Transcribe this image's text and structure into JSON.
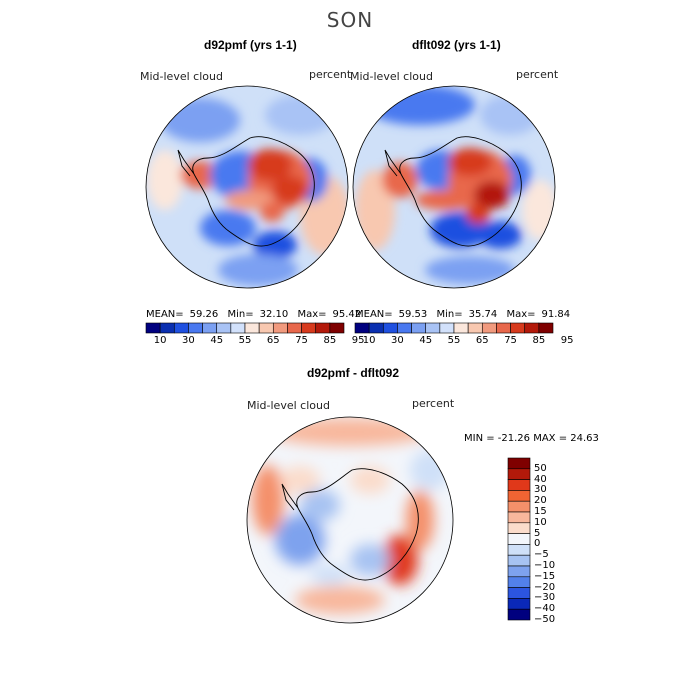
{
  "chart_data": [
    {
      "type": "heatmap",
      "projection": "south-polar-stereographic",
      "title": "d92pmf (yrs 1-1)",
      "field_label": "Mid-level cloud",
      "units_label": "percent",
      "stats": {
        "mean_label": "MEAN=",
        "mean": "59.26",
        "min_label": "Min=",
        "min": "32.10",
        "max_label": "Max=",
        "max": "95.42"
      },
      "colorbar_ticks": [
        "10",
        "30",
        "45",
        "55",
        "65",
        "75",
        "85",
        "95"
      ]
    },
    {
      "type": "heatmap",
      "projection": "south-polar-stereographic",
      "title": "dflt092 (yrs 1-1)",
      "field_label": "Mid-level cloud",
      "units_label": "percent",
      "stats": {
        "mean_label": "MEAN=",
        "mean": "59.53",
        "min_label": "Min=",
        "min": "35.74",
        "max_label": "Max=",
        "max": "91.84"
      },
      "colorbar_ticks": [
        "10",
        "30",
        "45",
        "55",
        "65",
        "75",
        "85",
        "95"
      ]
    },
    {
      "type": "heatmap",
      "projection": "south-polar-stereographic",
      "title": "d92pmf - dflt092",
      "field_label": "Mid-level cloud",
      "units_label": "percent",
      "minmax_text": "MIN = -21.26 MAX =  24.63",
      "colorbar_ticks": [
        "50",
        "40",
        "30",
        "20",
        "15",
        "10",
        "5",
        "0",
        "−5",
        "−10",
        "−15",
        "−20",
        "−30",
        "−40",
        "−50"
      ]
    }
  ],
  "page": {
    "season": "SON"
  },
  "colors": {
    "seq_scale": [
      "#00007f",
      "#0a2fb0",
      "#1f50e0",
      "#4a79f0",
      "#7ba0f2",
      "#a9c3f5",
      "#d2e1fb",
      "#fbe7dc",
      "#f8c8b0",
      "#f19a7e",
      "#e8684c",
      "#d73a1d",
      "#b3190a",
      "#7f0000"
    ],
    "diff_scale": [
      "#7f0000",
      "#b3190a",
      "#e0381a",
      "#f06433",
      "#f4906a",
      "#f8b79c",
      "#fbdccb",
      "#f3f6fb",
      "#cfe0f8",
      "#a7c3f2",
      "#7ea2ee",
      "#5280ea",
      "#2c55e0",
      "#0a28b8",
      "#00007f"
    ]
  }
}
